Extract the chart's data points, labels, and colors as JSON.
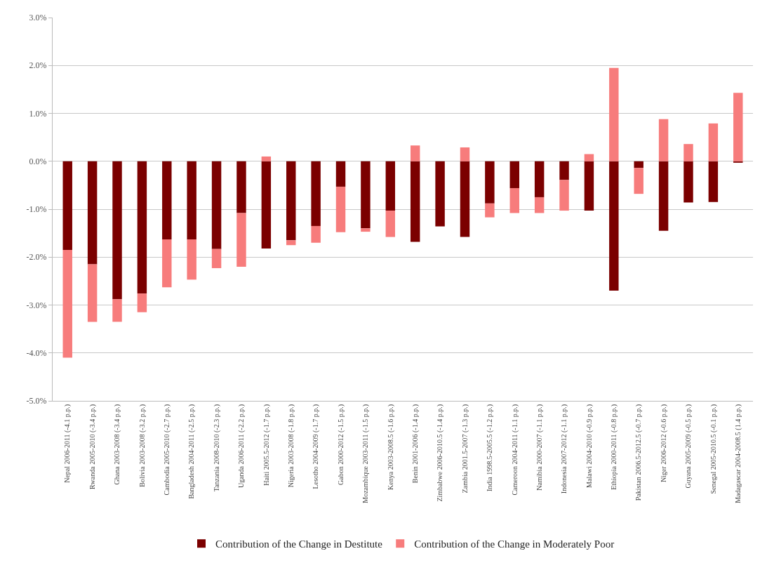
{
  "chart_data": {
    "type": "bar",
    "stacked": true,
    "categories": [
      "Nepal 2006-2011 (-4.1 p.p.)",
      "Rwanda 2005-2010 (-3.4 p.p.)",
      "Ghana 2003-2008 (-3.4 p.p.)",
      "Bolivia 2003-2008 (-3.2 p.p.)",
      "Cambodia 2005-2010 (-2.7 p.p.)",
      "Bangladesh 2004-2011 (-2.5 p.p.)",
      "Tanzania 2008-2010 (-2.3 p.p.)",
      "Uganda 2006-2011 (-2.2 p.p.)",
      "Haiti 2005.5-2012 (-1.7 p.p.)",
      "Nigeria 2003-2008 (-1.8 p.p.)",
      "Lesotho 2004-2009 (-1.7 p.p.)",
      "Gabon 2000-2012 (-1.5 p.p.)",
      "Mozambique 2003-2011 (-1.5 p.p.)",
      "Kenya 2003-2008.5 (-1.6 p.p.)",
      "Benin 2001-2006 (-1.4 p.p.)",
      "Zimbabwe 2006-2010.5 (-1.4 p.p.)",
      "Zambia 2001.5-2007 (-1.3 p.p.)",
      "India 1998.5-2005.5 (-1.2 p.p.)",
      "Cameroon 2004-2011 (-1.1 p.p.)",
      "Namibia 2000-2007 (-1.1 p.p.)",
      "Indonesia 2007-2012 (-1.1 p.p.)",
      "Malawi 2004-2010 (-0.9 p.p.)",
      "Ethiopia 2000-2011 (-0.8 p.p.)",
      "Pakistan 2006.5-2012.5 (-0.7 p.p.)",
      "Niger 2006-2012 (-0.6 p.p.)",
      "Guyana 2005-2009 (-0.5 p.p.)",
      "Senegal 2005-2010.5 (-0.1 p.p.)",
      "Madagascar 2004-2008.5 (1.4 p.p.)"
    ],
    "series": [
      {
        "name": "Contribution of the Change in Destitute",
        "color": "#7b0000",
        "values": [
          -1.85,
          -2.15,
          -2.88,
          -2.76,
          -1.63,
          -1.63,
          -1.83,
          -1.08,
          -1.82,
          -1.65,
          -1.35,
          -0.53,
          -1.4,
          -1.03,
          -1.68,
          -1.36,
          -1.58,
          -0.88,
          -0.56,
          -0.75,
          -0.39,
          -1.03,
          -2.7,
          -0.14,
          -1.45,
          -0.86,
          -0.85,
          -0.03
        ]
      },
      {
        "name": "Contribution of the Change in Moderately Poor",
        "color": "#f77c7c",
        "values": [
          -2.25,
          -1.2,
          -0.47,
          -0.39,
          -1.0,
          -0.84,
          -0.4,
          -1.12,
          0.1,
          -0.1,
          -0.35,
          -0.95,
          -0.07,
          -0.55,
          0.33,
          0,
          0.29,
          -0.29,
          -0.52,
          -0.33,
          -0.64,
          0.15,
          1.95,
          -0.54,
          0.88,
          0.36,
          0.79,
          1.43
        ]
      }
    ],
    "ylim": [
      -5,
      3
    ],
    "yticks": [
      {
        "value": -5,
        "label": "-5.0%"
      },
      {
        "value": -4,
        "label": "-4.0%"
      },
      {
        "value": -3,
        "label": "-3.0%"
      },
      {
        "value": -2,
        "label": "-2.0%"
      },
      {
        "value": -1,
        "label": "-1.0%"
      },
      {
        "value": 0,
        "label": "0.0%"
      },
      {
        "value": 1,
        "label": "1.0%"
      },
      {
        "value": 2,
        "label": "2.0%"
      },
      {
        "value": 3,
        "label": "3.0%"
      }
    ],
    "grid": "y",
    "legend": "bottom"
  }
}
